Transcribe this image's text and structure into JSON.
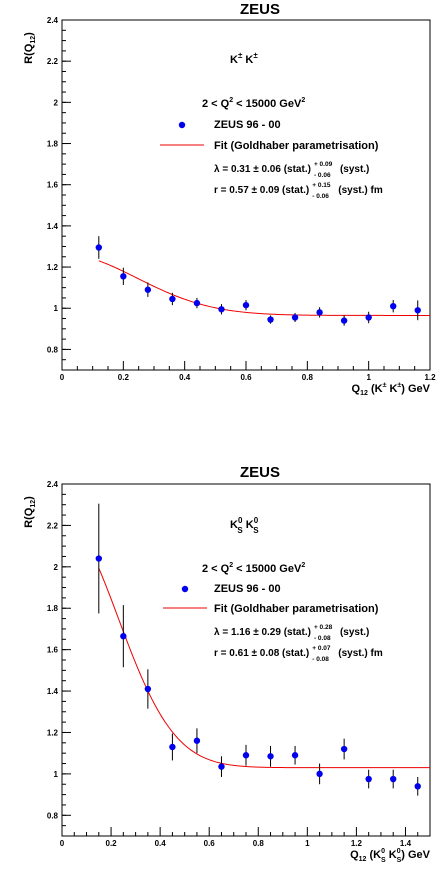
{
  "chart_data": [
    {
      "type": "scatter",
      "title": "ZEUS",
      "particle_label": {
        "main": "K",
        "sup1": "±",
        "mid": " K",
        "sup2": "±"
      },
      "ylabel": {
        "main": "R(Q",
        "sub": "12",
        "tail": ")"
      },
      "xlabel": {
        "main": "Q",
        "sub": "12",
        "p1": " (K",
        "sup1": "±",
        "p2": " K",
        "sup2": "±",
        "p3": ") GeV"
      },
      "xlim": [
        0,
        1.2
      ],
      "ylim": [
        0.7,
        2.4
      ],
      "xticks": [
        "0",
        "0.2",
        "0.4",
        "0.6",
        "0.8",
        "1",
        "1.2"
      ],
      "yticks": [
        "0.8",
        "1",
        "1.2",
        "1.4",
        "1.6",
        "1.8",
        "2",
        "2.2",
        "2.4"
      ],
      "range_text": {
        "p1": "2  <  Q",
        "sup": "2",
        "p2": " < 15000  GeV",
        "sup2": "2"
      },
      "legend_data": "ZEUS  96 - 00",
      "legend_fit": "Fit (Goldhaber parametrisation)",
      "lambda_text": {
        "p1": "λ = 0.31 ± 0.06 (stat.)",
        "plus": "+ 0.09",
        "minus": "- 0.06",
        "p2": "(syst.)"
      },
      "r_text": {
        "p1": "r = 0.57 ± 0.09 (stat.)",
        "plus": "+ 0.15",
        "minus": "- 0.06",
        "p2": "(syst.)  fm"
      },
      "fit": {
        "lambda": 0.31,
        "r": 0.57,
        "norm": 0.965
      },
      "points": [
        {
          "x": 0.12,
          "y": 1.295,
          "err": 0.055
        },
        {
          "x": 0.2,
          "y": 1.155,
          "err": 0.042
        },
        {
          "x": 0.28,
          "y": 1.09,
          "err": 0.035
        },
        {
          "x": 0.36,
          "y": 1.045,
          "err": 0.03
        },
        {
          "x": 0.44,
          "y": 1.025,
          "err": 0.025
        },
        {
          "x": 0.52,
          "y": 0.995,
          "err": 0.025
        },
        {
          "x": 0.6,
          "y": 1.015,
          "err": 0.025
        },
        {
          "x": 0.68,
          "y": 0.945,
          "err": 0.02
        },
        {
          "x": 0.76,
          "y": 0.955,
          "err": 0.022
        },
        {
          "x": 0.84,
          "y": 0.98,
          "err": 0.025
        },
        {
          "x": 0.92,
          "y": 0.94,
          "err": 0.025
        },
        {
          "x": 1.0,
          "y": 0.955,
          "err": 0.028
        },
        {
          "x": 1.08,
          "y": 1.01,
          "err": 0.03
        },
        {
          "x": 1.16,
          "y": 0.99,
          "err": 0.048
        }
      ]
    },
    {
      "type": "scatter",
      "title": "ZEUS",
      "particle_label": {
        "main": "K",
        "sup1": "0",
        "sub1": "S",
        "mid": " K",
        "sup2": "0",
        "sub2": "S"
      },
      "ylabel": {
        "main": "R(Q",
        "sub": "12",
        "tail": ")"
      },
      "xlabel": {
        "main": "Q",
        "sub": "12",
        "p1": " (K",
        "sup1": "0",
        "sub1": "S",
        "p2": " K",
        "sup2": "0",
        "sub2": "S",
        "p3": ") GeV"
      },
      "xlim": [
        0,
        1.5
      ],
      "ylim": [
        0.7,
        2.4
      ],
      "xticks": [
        "0",
        "0.2",
        "0.4",
        "0.6",
        "0.8",
        "1",
        "1.2",
        "1.4"
      ],
      "yticks": [
        "0.8",
        "1",
        "1.2",
        "1.4",
        "1.6",
        "1.8",
        "2",
        "2.2",
        "2.4"
      ],
      "range_text": {
        "p1": "2  <  Q",
        "sup": "2",
        "p2": " < 15000  GeV",
        "sup2": "2"
      },
      "legend_data": "ZEUS  96 - 00",
      "legend_fit": "Fit (Goldhaber parametrisation)",
      "lambda_text": {
        "p1": "λ = 1.16 ± 0.29 (stat.)",
        "plus": "+ 0.28",
        "minus": "- 0.08",
        "p2": "(syst.)"
      },
      "r_text": {
        "p1": "r = 0.61 ± 0.08 (stat.)",
        "plus": "+ 0.07",
        "minus": "- 0.08",
        "p2": "(syst.)  fm"
      },
      "fit": {
        "lambda": 1.16,
        "r": 0.61,
        "norm": 1.03
      },
      "points": [
        {
          "x": 0.15,
          "y": 2.04,
          "err": 0.265
        },
        {
          "x": 0.25,
          "y": 1.665,
          "err": 0.15
        },
        {
          "x": 0.35,
          "y": 1.41,
          "err": 0.095
        },
        {
          "x": 0.45,
          "y": 1.13,
          "err": 0.065
        },
        {
          "x": 0.55,
          "y": 1.16,
          "err": 0.06
        },
        {
          "x": 0.65,
          "y": 1.035,
          "err": 0.05
        },
        {
          "x": 0.75,
          "y": 1.09,
          "err": 0.05
        },
        {
          "x": 0.85,
          "y": 1.085,
          "err": 0.05
        },
        {
          "x": 0.95,
          "y": 1.09,
          "err": 0.045
        },
        {
          "x": 1.05,
          "y": 1.0,
          "err": 0.05
        },
        {
          "x": 1.15,
          "y": 1.12,
          "err": 0.05
        },
        {
          "x": 1.25,
          "y": 0.975,
          "err": 0.045
        },
        {
          "x": 1.35,
          "y": 0.975,
          "err": 0.045
        },
        {
          "x": 1.45,
          "y": 0.94,
          "err": 0.045
        }
      ]
    }
  ],
  "colors": {
    "points": "#0000ee",
    "fit": "#ee0000",
    "axes": "#000000"
  }
}
